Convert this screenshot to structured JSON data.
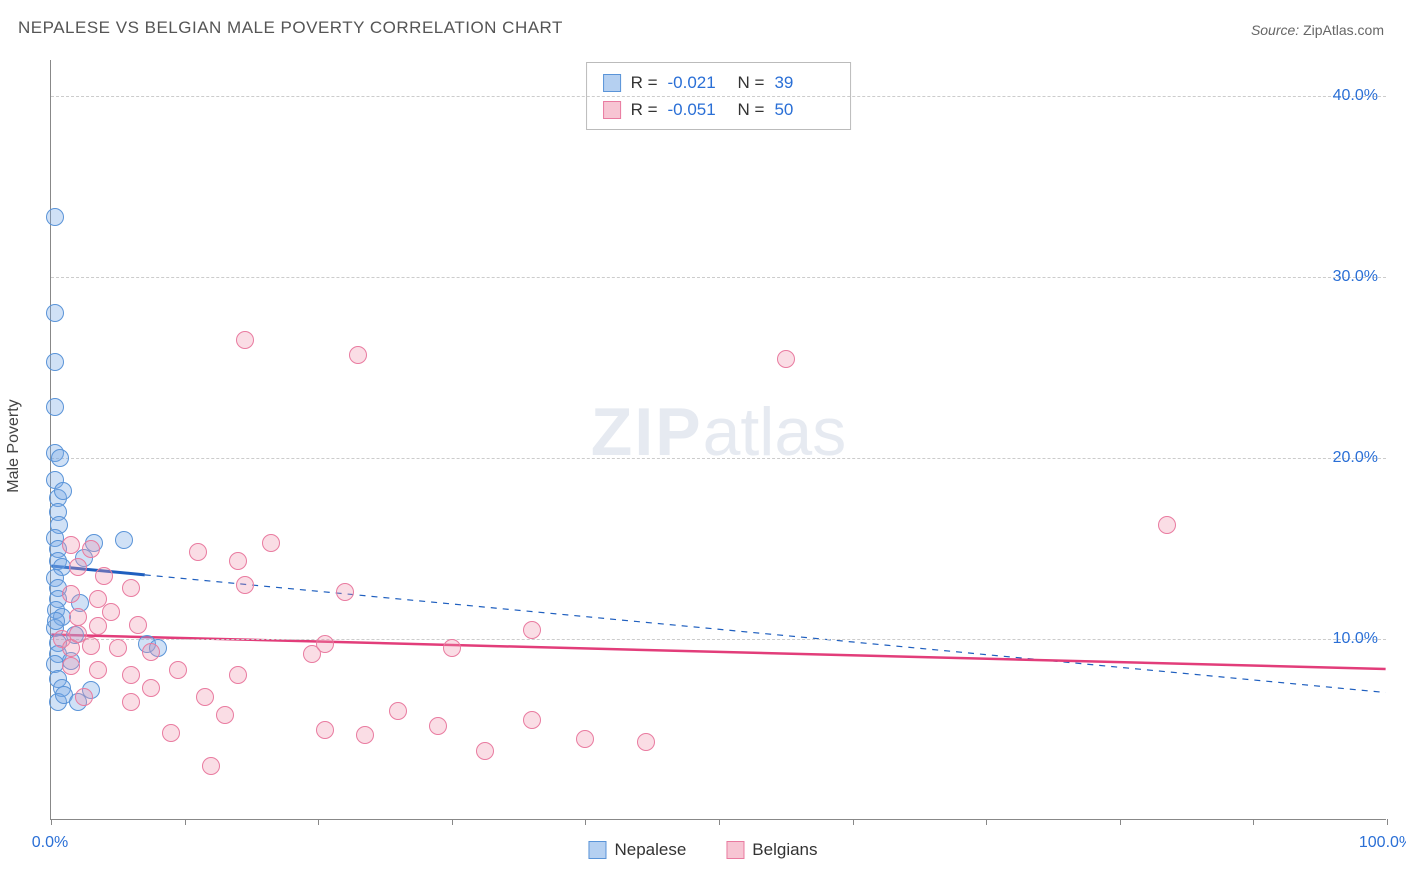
{
  "title": "NEPALESE VS BELGIAN MALE POVERTY CORRELATION CHART",
  "source": {
    "label": "Source:",
    "name": "ZipAtlas.com"
  },
  "ylabel": "Male Poverty",
  "watermark": {
    "prefix": "ZIP",
    "suffix": "atlas"
  },
  "chart": {
    "type": "scatter",
    "background_color": "#ffffff",
    "grid_color": "#cccccc",
    "axis_color": "#888888",
    "marker_size": 18,
    "x": {
      "min": 0,
      "max": 100,
      "ticks": [
        0,
        10,
        20,
        30,
        40,
        50,
        60,
        70,
        80,
        90,
        100
      ],
      "labels": {
        "0": "0.0%",
        "100": "100.0%"
      }
    },
    "y": {
      "min": 0,
      "max": 42,
      "gridlines": [
        10,
        20,
        30,
        40
      ],
      "labels": {
        "10": "10.0%",
        "20": "20.0%",
        "30": "30.0%",
        "40": "40.0%"
      }
    },
    "series": {
      "nepalese": {
        "label": "Nepalese",
        "fill": "rgba(120,170,230,0.35)",
        "stroke": "#5a94d8",
        "trend_color": "#1f5fbf",
        "trend_width": 3,
        "trend": {
          "y0": 14.0,
          "y1": 7.0,
          "solid_until_x": 7
        },
        "R": "-0.021",
        "N": "39",
        "points": [
          [
            0.3,
            33.3
          ],
          [
            0.3,
            28.0
          ],
          [
            0.3,
            25.3
          ],
          [
            0.3,
            22.8
          ],
          [
            0.3,
            20.3
          ],
          [
            0.3,
            18.8
          ],
          [
            0.5,
            17.8
          ],
          [
            0.5,
            17.0
          ],
          [
            0.6,
            16.3
          ],
          [
            0.3,
            15.6
          ],
          [
            0.5,
            15.0
          ],
          [
            0.5,
            14.3
          ],
          [
            0.8,
            14.0
          ],
          [
            0.3,
            13.4
          ],
          [
            0.5,
            12.8
          ],
          [
            0.5,
            12.2
          ],
          [
            0.4,
            11.6
          ],
          [
            0.8,
            11.2
          ],
          [
            0.3,
            10.6
          ],
          [
            0.5,
            9.8
          ],
          [
            0.5,
            9.2
          ],
          [
            0.3,
            8.6
          ],
          [
            0.5,
            7.8
          ],
          [
            0.8,
            7.3
          ],
          [
            0.5,
            6.5
          ],
          [
            3.0,
            7.2
          ],
          [
            1.5,
            8.8
          ],
          [
            1.8,
            10.2
          ],
          [
            2.2,
            12.0
          ],
          [
            2.5,
            14.5
          ],
          [
            3.2,
            15.3
          ],
          [
            5.5,
            15.5
          ],
          [
            7.2,
            9.7
          ],
          [
            8.0,
            9.5
          ],
          [
            1.0,
            6.9
          ],
          [
            2.0,
            6.5
          ],
          [
            0.7,
            20.0
          ],
          [
            0.9,
            18.2
          ],
          [
            0.4,
            11.0
          ]
        ]
      },
      "belgians": {
        "label": "Belgians",
        "fill": "rgba(240,150,175,0.32)",
        "stroke": "#e97ba0",
        "trend_color": "#e23d7a",
        "trend_width": 2.5,
        "trend": {
          "y0": 10.2,
          "y1": 8.3,
          "solid_until_x": 100
        },
        "R": "-0.051",
        "N": "50",
        "points": [
          [
            14.5,
            26.5
          ],
          [
            23.0,
            25.7
          ],
          [
            55.0,
            25.5
          ],
          [
            83.5,
            16.3
          ],
          [
            1.5,
            15.2
          ],
          [
            3.0,
            15.0
          ],
          [
            2.0,
            14.0
          ],
          [
            4.0,
            13.5
          ],
          [
            11.0,
            14.8
          ],
          [
            14.5,
            13.0
          ],
          [
            16.5,
            15.3
          ],
          [
            14.0,
            14.3
          ],
          [
            1.5,
            12.5
          ],
          [
            3.5,
            12.2
          ],
          [
            6.0,
            12.8
          ],
          [
            2.0,
            11.2
          ],
          [
            3.5,
            10.7
          ],
          [
            6.5,
            10.8
          ],
          [
            22.0,
            12.6
          ],
          [
            36.0,
            10.5
          ],
          [
            0.8,
            10.0
          ],
          [
            1.5,
            9.5
          ],
          [
            3.0,
            9.6
          ],
          [
            7.5,
            9.3
          ],
          [
            5.0,
            9.5
          ],
          [
            19.5,
            9.2
          ],
          [
            1.5,
            8.5
          ],
          [
            3.5,
            8.3
          ],
          [
            6.0,
            8.0
          ],
          [
            9.5,
            8.3
          ],
          [
            14.0,
            8.0
          ],
          [
            7.5,
            7.3
          ],
          [
            11.5,
            6.8
          ],
          [
            20.5,
            9.7
          ],
          [
            2.5,
            6.8
          ],
          [
            6.0,
            6.5
          ],
          [
            13.0,
            5.8
          ],
          [
            9.0,
            4.8
          ],
          [
            20.5,
            5.0
          ],
          [
            23.5,
            4.7
          ],
          [
            26.0,
            6.0
          ],
          [
            29.0,
            5.2
          ],
          [
            32.5,
            3.8
          ],
          [
            36.0,
            5.5
          ],
          [
            40.0,
            4.5
          ],
          [
            44.5,
            4.3
          ],
          [
            2.0,
            10.3
          ],
          [
            4.5,
            11.5
          ],
          [
            30.0,
            9.5
          ],
          [
            12.0,
            3.0
          ]
        ]
      }
    }
  },
  "legend_bottom": [
    "nepalese",
    "belgians"
  ]
}
